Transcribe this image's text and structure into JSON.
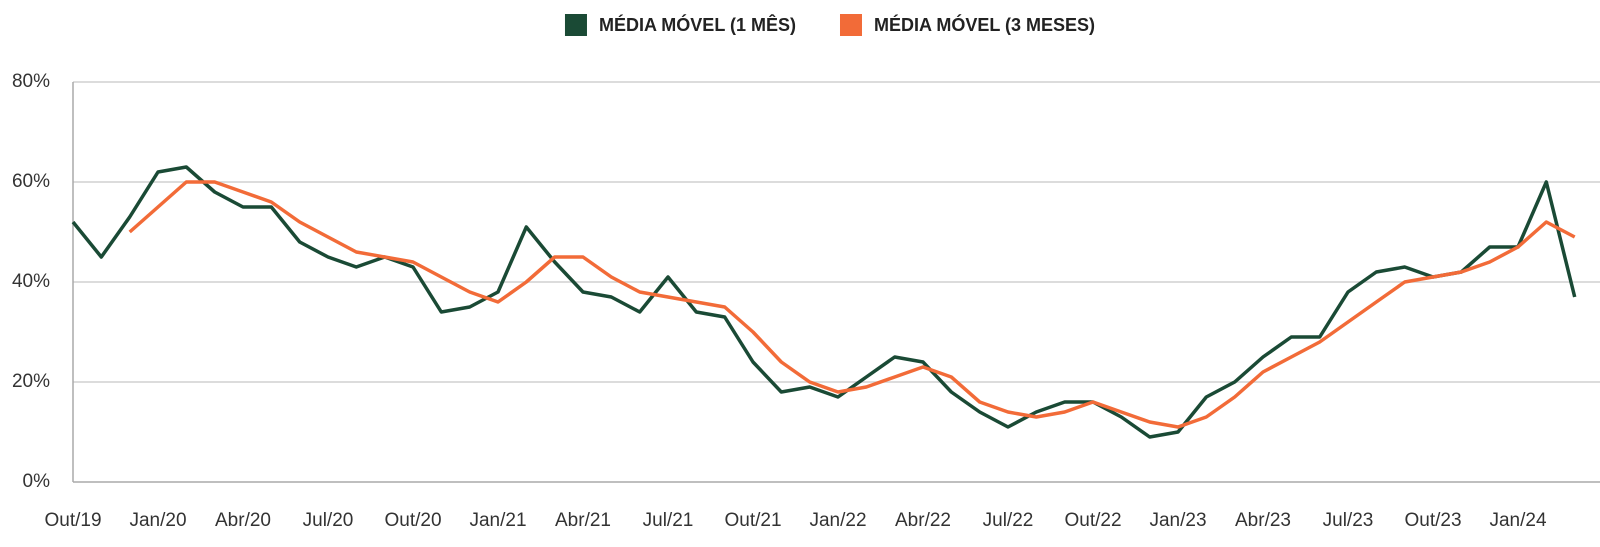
{
  "chart_data": {
    "type": "line",
    "categories": [
      "Out/19",
      null,
      null,
      "Jan/20",
      null,
      null,
      "Abr/20",
      null,
      null,
      "Jul/20",
      null,
      null,
      "Out/20",
      null,
      null,
      "Jan/21",
      null,
      null,
      "Abr/21",
      null,
      null,
      "Jul/21",
      null,
      null,
      "Out/21",
      null,
      null,
      "Jan/22",
      null,
      null,
      "Abr/22",
      null,
      null,
      "Jul/22",
      null,
      null,
      "Out/22",
      null,
      null,
      "Jan/23",
      null,
      null,
      "Abr/23",
      null,
      null,
      "Jul/23",
      null,
      null,
      "Out/23",
      null,
      null,
      "Jan/24",
      null,
      null
    ],
    "series": [
      {
        "name": "MÉDIA MÓVEL (1 MÊS)",
        "color": "#1a4a35",
        "values": [
          52,
          45,
          53,
          62,
          63,
          58,
          55,
          55,
          48,
          45,
          43,
          45,
          43,
          34,
          35,
          38,
          51,
          44,
          38,
          37,
          34,
          41,
          34,
          33,
          24,
          18,
          19,
          17,
          21,
          25,
          24,
          18,
          14,
          11,
          14,
          16,
          16,
          13,
          9,
          10,
          17,
          20,
          25,
          29,
          29,
          38,
          42,
          43,
          41,
          42,
          47,
          47,
          60,
          37
        ]
      },
      {
        "name": "MÉDIA MÓVEL (3 MESES)",
        "color": "#f26b38",
        "values": [
          null,
          null,
          50,
          55,
          60,
          60,
          58,
          56,
          52,
          49,
          46,
          45,
          44,
          41,
          38,
          36,
          40,
          45,
          45,
          41,
          38,
          37,
          36,
          35,
          30,
          24,
          20,
          18,
          19,
          21,
          23,
          21,
          16,
          14,
          13,
          14,
          16,
          14,
          12,
          11,
          13,
          17,
          22,
          25,
          28,
          32,
          36,
          40,
          41,
          42,
          44,
          47,
          52,
          49
        ]
      }
    ],
    "ylim": [
      0,
      80
    ],
    "yticks": [
      {
        "value": 0,
        "label": "0%"
      },
      {
        "value": 20,
        "label": "20%"
      },
      {
        "value": 40,
        "label": "40%"
      },
      {
        "value": 60,
        "label": "60%"
      },
      {
        "value": 80,
        "label": "80%"
      }
    ],
    "grid": true,
    "legend": "top"
  }
}
